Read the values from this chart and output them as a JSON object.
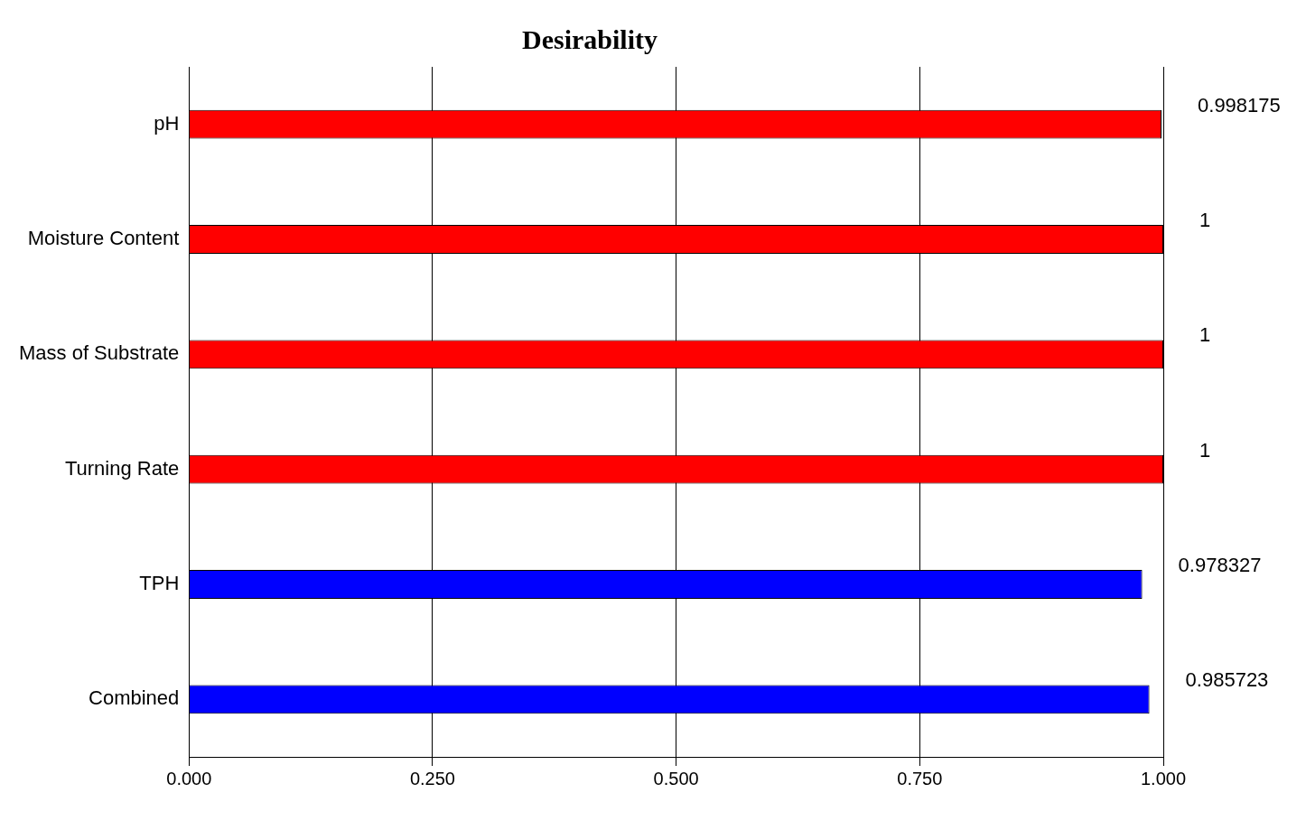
{
  "chart_data": {
    "type": "bar",
    "orientation": "horizontal",
    "title": "Desirability",
    "categories": [
      "pH",
      "Moisture Content",
      "Mass of Substrate",
      "Turning Rate",
      "TPH",
      "Combined"
    ],
    "values": [
      0.998175,
      1,
      1,
      1,
      0.978327,
      0.985723
    ],
    "colors": [
      "#ff0000",
      "#ff0000",
      "#ff0000",
      "#ff0000",
      "#0000ff",
      "#0000ff"
    ],
    "xlim": [
      0,
      1
    ],
    "xticks": [
      {
        "value": 0,
        "label": "0.000"
      },
      {
        "value": 0.25,
        "label": "0.250"
      },
      {
        "value": 0.5,
        "label": "0.500"
      },
      {
        "value": 0.75,
        "label": "0.750"
      },
      {
        "value": 1,
        "label": "1.000"
      }
    ],
    "grid": "x",
    "data_labels": true,
    "legend": false
  }
}
